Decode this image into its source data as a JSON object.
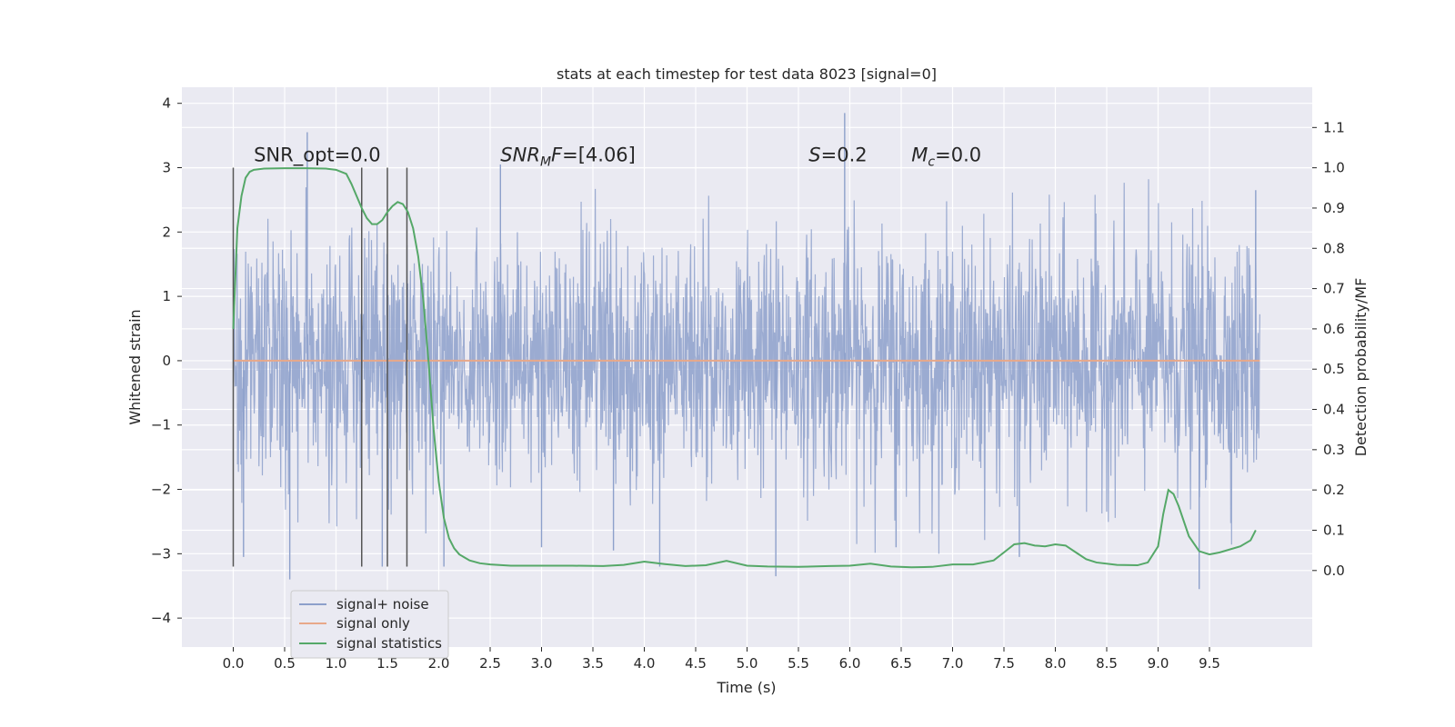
{
  "chart_data": {
    "type": "line",
    "title": "stats at each timestep for test data 8023 [signal=0]",
    "xlabel": "Time (s)",
    "ylabel": "Whitened strain",
    "y2label": "Detection probability/MF",
    "xlim": [
      -0.5,
      10.5
    ],
    "ylim": [
      -4.45,
      4.25
    ],
    "y2lim": [
      -0.19,
      1.2
    ],
    "x_ticks": [
      0.0,
      0.5,
      1.0,
      1.5,
      2.0,
      2.5,
      3.0,
      3.5,
      4.0,
      4.5,
      5.0,
      5.5,
      6.0,
      6.5,
      7.0,
      7.5,
      8.0,
      8.5,
      9.0,
      9.5
    ],
    "x_tick_labels": [
      "0.0",
      "0.5",
      "1.0",
      "1.5",
      "2.0",
      "2.5",
      "3.0",
      "3.5",
      "4.0",
      "4.5",
      "5.0",
      "5.5",
      "6.0",
      "6.5",
      "7.0",
      "7.5",
      "8.0",
      "8.5",
      "9.0",
      "9.5"
    ],
    "y_ticks": [
      -4,
      -3,
      -2,
      -1,
      0,
      1,
      2,
      3,
      4
    ],
    "y_tick_labels": [
      "−4",
      "−3",
      "−2",
      "−1",
      "0",
      "1",
      "2",
      "3",
      "4"
    ],
    "y2_ticks": [
      0.0,
      0.1,
      0.2,
      0.3,
      0.4,
      0.5,
      0.6,
      0.7,
      0.8,
      0.9,
      1.0,
      1.1
    ],
    "y2_tick_labels": [
      "0.0",
      "0.1",
      "0.2",
      "0.3",
      "0.4",
      "0.5",
      "0.6",
      "0.7",
      "0.8",
      "0.9",
      "1.0",
      "1.1"
    ],
    "grid": true,
    "legend_position": "bottom-left",
    "annotations": [
      {
        "html": "SNR_opt=0.0",
        "x": 0.2,
        "y": 3.1
      },
      {
        "html": "<tspan font-style=\"italic\">SNR</tspan><tspan font-style=\"italic\" font-size=\"14\" dy=\"5\">M</tspan><tspan font-style=\"italic\" dy=\"-5\">F</tspan>=[4.06]",
        "x": 2.6,
        "y": 3.1
      },
      {
        "html": "<tspan font-style=\"italic\">S</tspan>=0.2",
        "x": 5.6,
        "y": 3.1
      },
      {
        "html": "<tspan font-style=\"italic\">M</tspan><tspan font-style=\"italic\" font-size=\"14\" dy=\"5\">c</tspan><tspan dy=\"-5\">=0.0</tspan>",
        "x": 6.6,
        "y": 3.1
      }
    ],
    "vlines": [
      {
        "x": 0.0,
        "ymin": -3.2,
        "ymax": 3.0
      },
      {
        "x": 1.25,
        "ymin": -3.2,
        "ymax": 3.0
      },
      {
        "x": 1.5,
        "ymin": -3.2,
        "ymax": 3.0
      },
      {
        "x": 1.69,
        "ymin": -3.2,
        "ymax": 3.0
      }
    ],
    "noise": {
      "x_range": [
        0.0,
        9.99
      ],
      "typical_band": [
        -1.2,
        1.2
      ],
      "peaks": [
        {
          "x": 0.72,
          "y": 3.55
        },
        {
          "x": 0.55,
          "y": -3.4
        },
        {
          "x": 0.1,
          "y": -3.05
        },
        {
          "x": 1.45,
          "y": -3.2
        },
        {
          "x": 2.05,
          "y": -3.2
        },
        {
          "x": 2.6,
          "y": 3.05
        },
        {
          "x": 3.0,
          "y": -2.9
        },
        {
          "x": 3.7,
          "y": -2.95
        },
        {
          "x": 4.15,
          "y": -3.2
        },
        {
          "x": 5.28,
          "y": -3.35
        },
        {
          "x": 5.95,
          "y": 3.85
        },
        {
          "x": 6.45,
          "y": -2.9
        },
        {
          "x": 7.65,
          "y": -3.05
        },
        {
          "x": 9.4,
          "y": -3.55
        },
        {
          "x": 9.95,
          "y": 2.65
        }
      ]
    },
    "series": [
      {
        "name": "signal+ noise",
        "color": "#8da0cb",
        "axis": "left",
        "style": "noise"
      },
      {
        "name": "signal only",
        "color": "#e8a889",
        "axis": "left",
        "x": [
          0.0,
          9.99
        ],
        "y": [
          0.0,
          0.0
        ]
      },
      {
        "name": "signal statistics",
        "color": "#55a868",
        "axis": "right",
        "x": [
          0.0,
          0.04,
          0.08,
          0.12,
          0.16,
          0.2,
          0.3,
          0.5,
          0.7,
          0.9,
          1.0,
          1.1,
          1.15,
          1.2,
          1.25,
          1.3,
          1.35,
          1.4,
          1.45,
          1.5,
          1.55,
          1.6,
          1.65,
          1.7,
          1.75,
          1.8,
          1.85,
          1.9,
          1.95,
          2.0,
          2.05,
          2.1,
          2.15,
          2.2,
          2.3,
          2.4,
          2.5,
          2.7,
          3.0,
          3.3,
          3.6,
          3.8,
          4.0,
          4.2,
          4.4,
          4.6,
          4.8,
          5.0,
          5.2,
          5.5,
          5.8,
          6.0,
          6.2,
          6.4,
          6.6,
          6.8,
          7.0,
          7.2,
          7.4,
          7.5,
          7.6,
          7.7,
          7.8,
          7.9,
          8.0,
          8.1,
          8.2,
          8.3,
          8.4,
          8.6,
          8.8,
          8.9,
          9.0,
          9.05,
          9.1,
          9.15,
          9.2,
          9.3,
          9.4,
          9.5,
          9.6,
          9.8,
          9.9,
          9.95
        ],
        "y": [
          0.6,
          0.85,
          0.93,
          0.975,
          0.99,
          0.995,
          0.998,
          0.999,
          0.999,
          0.998,
          0.995,
          0.985,
          0.96,
          0.93,
          0.9,
          0.875,
          0.86,
          0.86,
          0.87,
          0.89,
          0.905,
          0.915,
          0.91,
          0.89,
          0.85,
          0.78,
          0.67,
          0.52,
          0.35,
          0.22,
          0.13,
          0.08,
          0.055,
          0.04,
          0.025,
          0.018,
          0.015,
          0.012,
          0.012,
          0.012,
          0.011,
          0.014,
          0.022,
          0.016,
          0.011,
          0.013,
          0.024,
          0.012,
          0.01,
          0.009,
          0.011,
          0.012,
          0.017,
          0.01,
          0.008,
          0.009,
          0.015,
          0.015,
          0.025,
          0.045,
          0.065,
          0.068,
          0.062,
          0.06,
          0.065,
          0.062,
          0.045,
          0.028,
          0.02,
          0.014,
          0.013,
          0.02,
          0.06,
          0.14,
          0.2,
          0.19,
          0.16,
          0.085,
          0.048,
          0.04,
          0.045,
          0.06,
          0.075,
          0.1
        ]
      }
    ]
  }
}
